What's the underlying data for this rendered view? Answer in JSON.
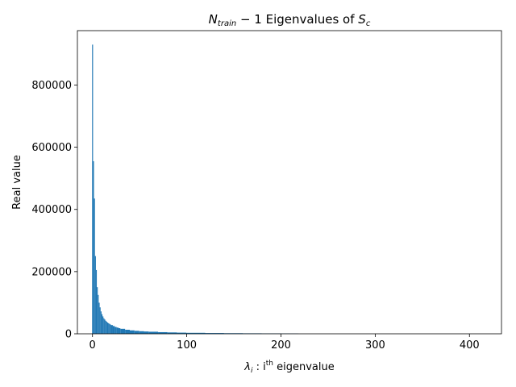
{
  "chart_data": {
    "type": "bar",
    "title_main": "N",
    "title_sub": "train",
    "title_mid": " − 1 Eigenvalues of ",
    "title_end": "S",
    "title_end_sub": "c",
    "xlabel_prefix": "λ",
    "xlabel_sub": "i",
    "xlabel_mid": " : i",
    "xlabel_sup": "th",
    "xlabel_end": " eigenvalue",
    "ylabel": "Real value",
    "xlim": [
      -16,
      434
    ],
    "ylim": [
      0,
      975000
    ],
    "xticks": [
      0,
      100,
      200,
      300,
      400
    ],
    "yticks": [
      0,
      200000,
      400000,
      600000,
      800000
    ],
    "bar_color": "#1f77b4",
    "grid": false,
    "x": [
      0,
      1,
      2,
      3,
      4,
      5,
      6,
      7,
      8,
      9,
      10,
      11,
      12,
      13,
      14,
      15,
      16,
      17,
      18,
      19,
      20,
      22,
      24,
      26,
      28,
      30,
      35,
      40,
      45,
      50,
      55,
      60,
      70,
      80,
      90,
      100,
      120,
      140,
      160,
      180,
      200,
      210,
      218
    ],
    "values": [
      930000,
      555000,
      435000,
      250000,
      205000,
      150000,
      125000,
      100000,
      85000,
      72000,
      63000,
      56000,
      50000,
      46000,
      42000,
      39000,
      36000,
      34000,
      32000,
      30000,
      28000,
      25000,
      22000,
      20000,
      18000,
      16000,
      13000,
      11000,
      9500,
      8300,
      7400,
      6600,
      5300,
      4400,
      3700,
      3100,
      2400,
      1900,
      1500,
      1200,
      900,
      750,
      500
    ]
  }
}
